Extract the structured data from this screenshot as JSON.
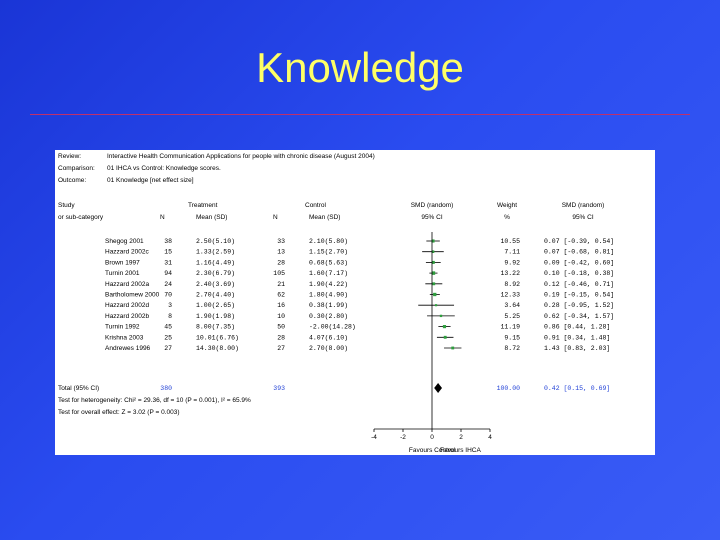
{
  "slide": {
    "title": "Knowledge"
  },
  "header": [
    {
      "label": "Review:",
      "value": "Interactive Health Communication Applications for people with chronic disease (August 2004)"
    },
    {
      "label": "Comparison:",
      "value": "01 IHCA vs Control: Knowledge scores."
    },
    {
      "label": "Outcome:",
      "value": "01 Knowledge [net effect size]"
    }
  ],
  "columns": {
    "study1": "Study",
    "study2": "or sub-category",
    "treatment": "Treatment",
    "n_t": "N",
    "mean_t": "Mean (SD)",
    "control": "Control",
    "n_c": "N",
    "mean_c": "Mean (SD)",
    "smd1": "SMD (random)",
    "ci1": "95% CI",
    "weight1": "Weight",
    "weight2": "%",
    "smd2": "SMD (random)",
    "ci2": "95% CI"
  },
  "chart_data": {
    "type": "forest",
    "xlim": [
      -4,
      4
    ],
    "ticks": [
      -4,
      -2,
      0,
      2,
      4
    ],
    "tick_labels": [
      "-4",
      "-2",
      "0",
      "2",
      "4"
    ],
    "favours_left": "Favours Control",
    "favours_right": "Favours IHCA",
    "studies": [
      {
        "name": "Shegog 2001",
        "n_t": "38",
        "mean_t": "2.50(5.10)",
        "n_c": "33",
        "mean_c": "2.10(5.80)",
        "weight": "10.55",
        "smd_text": "0.07 [-0.39, 0.54]",
        "smd": 0.07,
        "lo": -0.39,
        "hi": 0.54
      },
      {
        "name": "Hazzard 2002c",
        "n_t": "15",
        "mean_t": "1.33(2.59)",
        "n_c": "13",
        "mean_c": "1.15(2.70)",
        "weight": "7.11",
        "smd_text": "0.07 [-0.68, 0.81]",
        "smd": 0.07,
        "lo": -0.68,
        "hi": 0.81
      },
      {
        "name": "Brown 1997",
        "n_t": "31",
        "mean_t": "1.16(4.49)",
        "n_c": "28",
        "mean_c": "0.68(5.63)",
        "weight": "9.92",
        "smd_text": "0.09 [-0.42, 0.60]",
        "smd": 0.09,
        "lo": -0.42,
        "hi": 0.6
      },
      {
        "name": "Turnin 2001",
        "n_t": "94",
        "mean_t": "2.30(6.79)",
        "n_c": "105",
        "mean_c": "1.60(7.17)",
        "weight": "13.22",
        "smd_text": "0.10 [-0.18, 0.38]",
        "smd": 0.1,
        "lo": -0.18,
        "hi": 0.38
      },
      {
        "name": "Hazzard 2002a",
        "n_t": "24",
        "mean_t": "2.40(3.69)",
        "n_c": "21",
        "mean_c": "1.90(4.22)",
        "weight": "8.92",
        "smd_text": "0.12 [-0.46, 0.71]",
        "smd": 0.12,
        "lo": -0.46,
        "hi": 0.71
      },
      {
        "name": "Bartholomew 2000",
        "n_t": "70",
        "mean_t": "2.70(4.40)",
        "n_c": "62",
        "mean_c": "1.80(4.90)",
        "weight": "12.33",
        "smd_text": "0.19 [-0.15, 0.54]",
        "smd": 0.19,
        "lo": -0.15,
        "hi": 0.54
      },
      {
        "name": "Hazzard 2002d",
        "n_t": "3",
        "mean_t": "1.00(2.65)",
        "n_c": "16",
        "mean_c": "0.38(1.99)",
        "weight": "3.64",
        "smd_text": "0.28 [-0.95, 1.52]",
        "smd": 0.28,
        "lo": -0.95,
        "hi": 1.52
      },
      {
        "name": "Hazzard 2002b",
        "n_t": "8",
        "mean_t": "1.90(1.98)",
        "n_c": "10",
        "mean_c": "0.30(2.80)",
        "weight": "5.25",
        "smd_text": "0.62 [-0.34, 1.57]",
        "smd": 0.62,
        "lo": -0.34,
        "hi": 1.57
      },
      {
        "name": "Turnin 1992",
        "n_t": "45",
        "mean_t": "8.00(7.35)",
        "n_c": "50",
        "mean_c": "-2.00(14.28)",
        "weight": "11.19",
        "smd_text": "0.86 [0.44, 1.28]",
        "smd": 0.86,
        "lo": 0.44,
        "hi": 1.28
      },
      {
        "name": "Krishna 2003",
        "n_t": "25",
        "mean_t": "10.01(6.76)",
        "n_c": "28",
        "mean_c": "4.07(6.10)",
        "weight": "9.15",
        "smd_text": "0.91 [0.34, 1.48]",
        "smd": 0.91,
        "lo": 0.34,
        "hi": 1.48
      },
      {
        "name": "Andrewes 1996",
        "n_t": "27",
        "mean_t": "14.30(8.00)",
        "n_c": "27",
        "mean_c": "2.70(8.00)",
        "weight": "8.72",
        "smd_text": "1.43 [0.83, 2.03]",
        "smd": 1.43,
        "lo": 0.83,
        "hi": 2.03
      }
    ],
    "total": {
      "name": "Total (95% CI)",
      "n_t": "380",
      "n_c": "393",
      "weight": "100.00",
      "smd_text": "0.42 [0.15, 0.69]",
      "smd": 0.42,
      "lo": 0.15,
      "hi": 0.69
    },
    "heterogeneity": "Test for heterogeneity: Chi² = 29.36, df = 10 (P = 0.001), I² = 65.9%",
    "overall": "Test for overall effect: Z = 3.02 (P = 0.003)"
  },
  "colors": {
    "background": "#2a4cf0",
    "title": "#ffff66",
    "marker": "#2e9e3e",
    "total_text": "#1f3fd6"
  }
}
